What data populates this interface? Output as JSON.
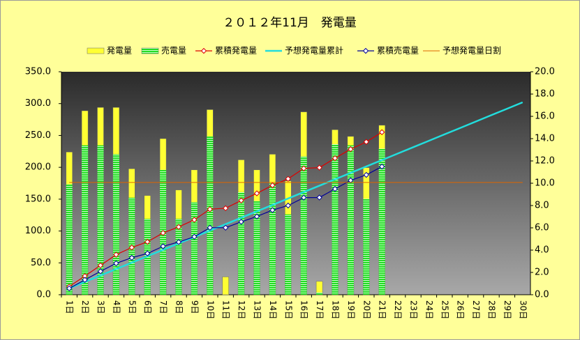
{
  "chart_data": {
    "type": "bar",
    "title": "２０１２年11月　発電量",
    "categories": [
      "1日",
      "2日",
      "3日",
      "4日",
      "5日",
      "6日",
      "7日",
      "8日",
      "9日",
      "10日",
      "11日",
      "12日",
      "13日",
      "14日",
      "15日",
      "16日",
      "17日",
      "18日",
      "19日",
      "20日",
      "21日",
      "22日",
      "23日",
      "24日",
      "25日",
      "26日",
      "27日",
      "28日",
      "29日",
      "30日"
    ],
    "series": [
      {
        "name": "発電量",
        "type": "bar",
        "axis": "y2",
        "color": "#ffff33",
        "values": [
          12.8,
          16.5,
          16.8,
          16.8,
          11.3,
          8.9,
          14.0,
          9.4,
          11.2,
          16.6,
          1.6,
          12.1,
          11.2,
          12.6,
          10.2,
          16.4,
          1.2,
          14.8,
          14.2,
          11.4,
          15.2,
          null,
          null,
          null,
          null,
          null,
          null,
          null,
          null,
          null
        ]
      },
      {
        "name": "売電量",
        "type": "bar",
        "axis": "y2",
        "color": "#22dd22",
        "values": [
          9.9,
          13.4,
          13.4,
          12.6,
          8.7,
          6.8,
          11.2,
          6.8,
          8.3,
          14.2,
          0,
          9.2,
          8.4,
          10.0,
          7.2,
          12.4,
          0.2,
          13.5,
          13.4,
          8.6,
          13.1,
          null,
          null,
          null,
          null,
          null,
          null,
          null,
          null,
          null
        ]
      },
      {
        "name": "累積発電量",
        "type": "line",
        "color": "#dd0000",
        "marker": "diamond",
        "values": [
          12.8,
          29.3,
          46.1,
          62.8,
          74.1,
          83.0,
          97.0,
          106.4,
          117.6,
          134.2,
          135.8,
          147.9,
          159.1,
          171.7,
          181.9,
          198.3,
          199.5,
          214.3,
          228.5,
          239.9,
          255.1,
          null,
          null,
          null,
          null,
          null,
          null,
          null,
          null,
          null
        ]
      },
      {
        "name": "予想発電量累計",
        "type": "line",
        "color": "#22dddd",
        "width": 2.5,
        "values": [
          10.1,
          20.1,
          30.2,
          40.3,
          50.3,
          60.4,
          70.5,
          80.5,
          90.6,
          100.7,
          110.7,
          120.8,
          130.9,
          140.9,
          151.0,
          161.1,
          171.1,
          181.2,
          191.3,
          201.3,
          211.4,
          221.5,
          231.5,
          241.6,
          251.7,
          261.7,
          271.8,
          281.9,
          291.9,
          302.0
        ]
      },
      {
        "name": "累積売電量",
        "type": "line",
        "color": "#000099",
        "marker": "diamond",
        "values": [
          9.9,
          23.3,
          36.7,
          49.3,
          58.0,
          64.8,
          76.0,
          82.7,
          91.0,
          105.2,
          105.2,
          114.4,
          122.8,
          132.8,
          140.0,
          152.4,
          152.6,
          166.1,
          179.5,
          188.1,
          201.2,
          null,
          null,
          null,
          null,
          null,
          null,
          null,
          null,
          null
        ]
      },
      {
        "name": "予想発電量日割",
        "type": "line",
        "axis": "y2",
        "color": "#dd6600",
        "width": 1,
        "values": [
          10.07,
          10.07,
          10.07,
          10.07,
          10.07,
          10.07,
          10.07,
          10.07,
          10.07,
          10.07,
          10.07,
          10.07,
          10.07,
          10.07,
          10.07,
          10.07,
          10.07,
          10.07,
          10.07,
          10.07,
          10.07,
          10.07,
          10.07,
          10.07,
          10.07,
          10.07,
          10.07,
          10.07,
          10.07,
          10.07
        ]
      }
    ],
    "ylim": [
      0,
      350
    ],
    "yticks": [
      {
        "value": 0,
        "label": "0.0"
      },
      {
        "value": 50,
        "label": "50.0"
      },
      {
        "value": 100,
        "label": "100.0"
      },
      {
        "value": 150,
        "label": "150.0"
      },
      {
        "value": 200,
        "label": "200.0"
      },
      {
        "value": 250,
        "label": "250.0"
      },
      {
        "value": 300,
        "label": "300.0"
      },
      {
        "value": 350,
        "label": "350.0"
      }
    ],
    "y2lim": [
      0,
      20
    ],
    "y2ticks": [
      {
        "value": 0,
        "label": "0.0"
      },
      {
        "value": 2,
        "label": "2.0"
      },
      {
        "value": 4,
        "label": "4.0"
      },
      {
        "value": 6,
        "label": "6.0"
      },
      {
        "value": 8,
        "label": "8.0"
      },
      {
        "value": 10,
        "label": "10.0"
      },
      {
        "value": 12,
        "label": "12.0"
      },
      {
        "value": 14,
        "label": "14.0"
      },
      {
        "value": 16,
        "label": "16.0"
      },
      {
        "value": 18,
        "label": "18.0"
      },
      {
        "value": 20,
        "label": "20.0"
      }
    ],
    "grid": false,
    "legend": "top"
  }
}
